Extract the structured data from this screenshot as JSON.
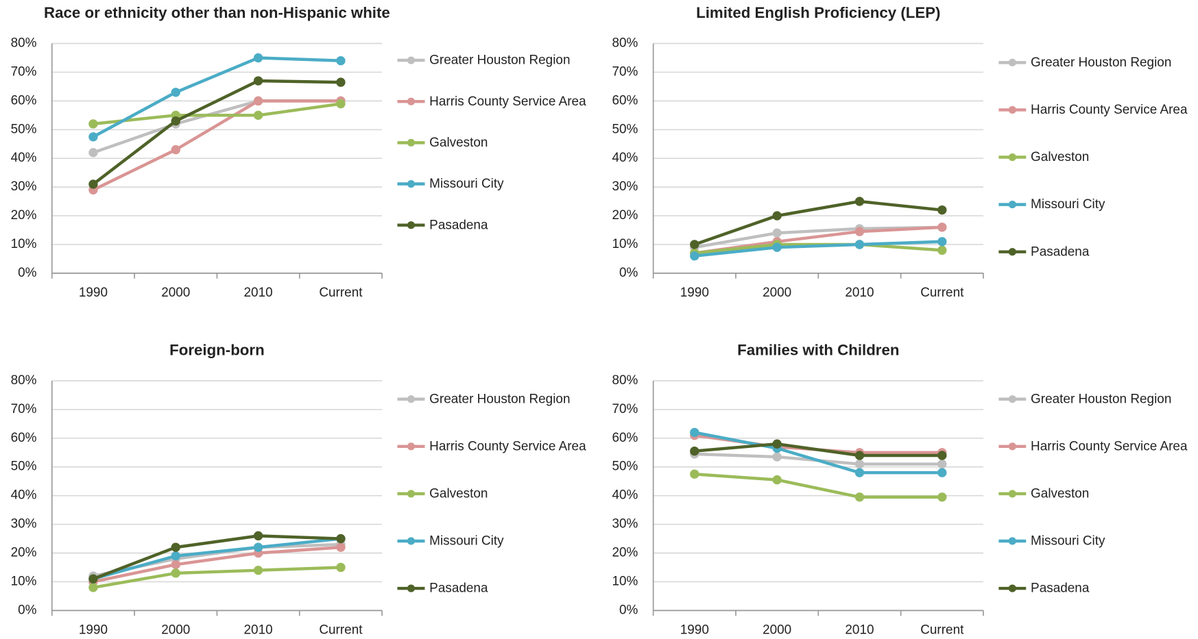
{
  "chart_data": [
    {
      "type": "line",
      "title": "Race or ethnicity other than non-Hispanic white",
      "categories": [
        "1990",
        "2000",
        "2010",
        "Current"
      ],
      "ylim": [
        0,
        80
      ],
      "yticks": [
        {
          "value": 0,
          "label": "0%"
        },
        {
          "value": 10,
          "label": "10%"
        },
        {
          "value": 20,
          "label": "20%"
        },
        {
          "value": 30,
          "label": "30%"
        },
        {
          "value": 40,
          "label": "40%"
        },
        {
          "value": 50,
          "label": "50%"
        },
        {
          "value": 60,
          "label": "60%"
        },
        {
          "value": 70,
          "label": "70%"
        },
        {
          "value": 80,
          "label": "80%"
        }
      ],
      "grid": true,
      "series": [
        {
          "name": "Greater Houston Region",
          "color": "#bfbfbf",
          "values": [
            42,
            52,
            60,
            60
          ]
        },
        {
          "name": "Harris County Service Area",
          "color": "#d99594",
          "values": [
            29,
            43,
            60,
            60
          ]
        },
        {
          "name": "Galveston",
          "color": "#9bbb59",
          "values": [
            52,
            55,
            55,
            59
          ]
        },
        {
          "name": "Missouri City",
          "color": "#4bacc6",
          "values": [
            47.5,
            63,
            75,
            74
          ]
        },
        {
          "name": "Pasadena",
          "color": "#4f6228",
          "values": [
            31,
            53,
            67,
            66.5
          ]
        }
      ]
    },
    {
      "type": "line",
      "title": "Limited English Proficiency (LEP)",
      "categories": [
        "1990",
        "2000",
        "2010",
        "Current"
      ],
      "ylim": [
        0,
        80
      ],
      "yticks": [
        {
          "value": 0,
          "label": "0%"
        },
        {
          "value": 10,
          "label": "10%"
        },
        {
          "value": 20,
          "label": "20%"
        },
        {
          "value": 30,
          "label": "30%"
        },
        {
          "value": 40,
          "label": "40%"
        },
        {
          "value": 50,
          "label": "50%"
        },
        {
          "value": 60,
          "label": "60%"
        },
        {
          "value": 70,
          "label": "70%"
        },
        {
          "value": 80,
          "label": "80%"
        }
      ],
      "grid": true,
      "series": [
        {
          "name": "Greater Houston Region",
          "color": "#bfbfbf",
          "values": [
            9,
            14,
            15.5,
            16
          ]
        },
        {
          "name": "Harris County Service Area",
          "color": "#d99594",
          "values": [
            7,
            11,
            14.5,
            16
          ]
        },
        {
          "name": "Galveston",
          "color": "#9bbb59",
          "values": [
            7,
            10,
            10,
            8
          ]
        },
        {
          "name": "Missouri City",
          "color": "#4bacc6",
          "values": [
            6,
            9,
            10,
            11
          ]
        },
        {
          "name": "Pasadena",
          "color": "#4f6228",
          "values": [
            10,
            20,
            25,
            22
          ]
        }
      ]
    },
    {
      "type": "line",
      "title": "Foreign-born",
      "categories": [
        "1990",
        "2000",
        "2010",
        "Current"
      ],
      "ylim": [
        0,
        80
      ],
      "yticks": [
        {
          "value": 0,
          "label": "0%"
        },
        {
          "value": 10,
          "label": "10%"
        },
        {
          "value": 20,
          "label": "20%"
        },
        {
          "value": 30,
          "label": "30%"
        },
        {
          "value": 40,
          "label": "40%"
        },
        {
          "value": 50,
          "label": "50%"
        },
        {
          "value": 60,
          "label": "60%"
        },
        {
          "value": 70,
          "label": "70%"
        },
        {
          "value": 80,
          "label": "80%"
        }
      ],
      "grid": true,
      "series": [
        {
          "name": "Greater Houston Region",
          "color": "#bfbfbf",
          "values": [
            12,
            18,
            22,
            23
          ]
        },
        {
          "name": "Harris County Service Area",
          "color": "#d99594",
          "values": [
            10,
            16,
            20,
            22
          ]
        },
        {
          "name": "Galveston",
          "color": "#9bbb59",
          "values": [
            8,
            13,
            14,
            15
          ]
        },
        {
          "name": "Missouri City",
          "color": "#4bacc6",
          "values": [
            11,
            19,
            22,
            25
          ]
        },
        {
          "name": "Pasadena",
          "color": "#4f6228",
          "values": [
            11,
            22,
            26,
            25
          ]
        }
      ]
    },
    {
      "type": "line",
      "title": "Families with Children",
      "categories": [
        "1990",
        "2000",
        "2010",
        "Current"
      ],
      "ylim": [
        0,
        80
      ],
      "yticks": [
        {
          "value": 0,
          "label": "0%"
        },
        {
          "value": 10,
          "label": "10%"
        },
        {
          "value": 20,
          "label": "20%"
        },
        {
          "value": 30,
          "label": "30%"
        },
        {
          "value": 40,
          "label": "40%"
        },
        {
          "value": 50,
          "label": "50%"
        },
        {
          "value": 60,
          "label": "60%"
        },
        {
          "value": 70,
          "label": "70%"
        },
        {
          "value": 80,
          "label": "80%"
        }
      ],
      "grid": true,
      "series": [
        {
          "name": "Greater Houston Region",
          "color": "#bfbfbf",
          "values": [
            54.5,
            53.5,
            51,
            51
          ]
        },
        {
          "name": "Harris County Service Area",
          "color": "#d99594",
          "values": [
            61,
            57,
            55,
            55
          ]
        },
        {
          "name": "Galveston",
          "color": "#9bbb59",
          "values": [
            47.5,
            45.5,
            39.5,
            39.5
          ]
        },
        {
          "name": "Missouri City",
          "color": "#4bacc6",
          "values": [
            62,
            56.5,
            48,
            48
          ]
        },
        {
          "name": "Pasadena",
          "color": "#4f6228",
          "values": [
            55.5,
            58,
            54,
            54
          ]
        }
      ]
    }
  ]
}
